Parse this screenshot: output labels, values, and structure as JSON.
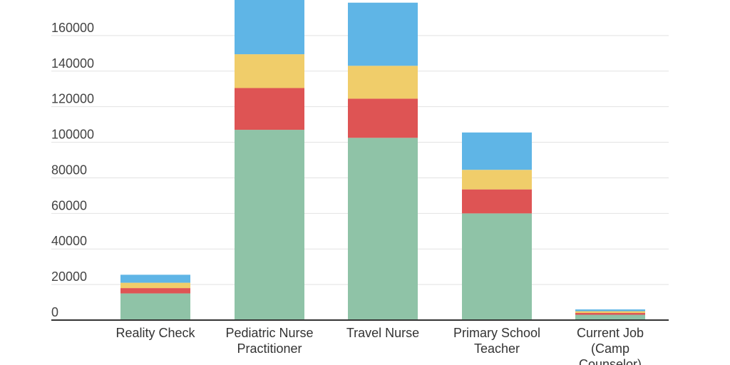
{
  "chart_data": {
    "type": "bar",
    "stacked": true,
    "title": "",
    "xlabel": "",
    "ylabel": "",
    "ylim": [
      0,
      180000
    ],
    "y_ticks": [
      0,
      20000,
      40000,
      60000,
      80000,
      100000,
      120000,
      140000,
      160000
    ],
    "y_tick_labels": [
      "0",
      "20000",
      "40000",
      "60000",
      "80000",
      "100000",
      "120000",
      "140000",
      "160000"
    ],
    "grid": true,
    "legend": "none",
    "categories": [
      [
        "Reality Check"
      ],
      [
        "Pediatric Nurse",
        "Practitioner"
      ],
      [
        "Travel Nurse"
      ],
      [
        "Primary School",
        "Teacher"
      ],
      [
        "Current Job",
        "(Camp",
        "Counselor)"
      ]
    ],
    "series": [
      {
        "name": "series-1",
        "color": "#8fc3a7",
        "values": [
          15000,
          107000,
          102500,
          60000,
          3000
        ]
      },
      {
        "name": "series-2",
        "color": "#de5454",
        "values": [
          3000,
          23500,
          22000,
          13500,
          1000
        ]
      },
      {
        "name": "series-3",
        "color": "#f0cd6a",
        "values": [
          3000,
          19000,
          18500,
          11000,
          1000
        ]
      },
      {
        "name": "series-4",
        "color": "#5fb5e6",
        "values": [
          4500,
          30500,
          35500,
          21000,
          1000
        ]
      }
    ]
  }
}
